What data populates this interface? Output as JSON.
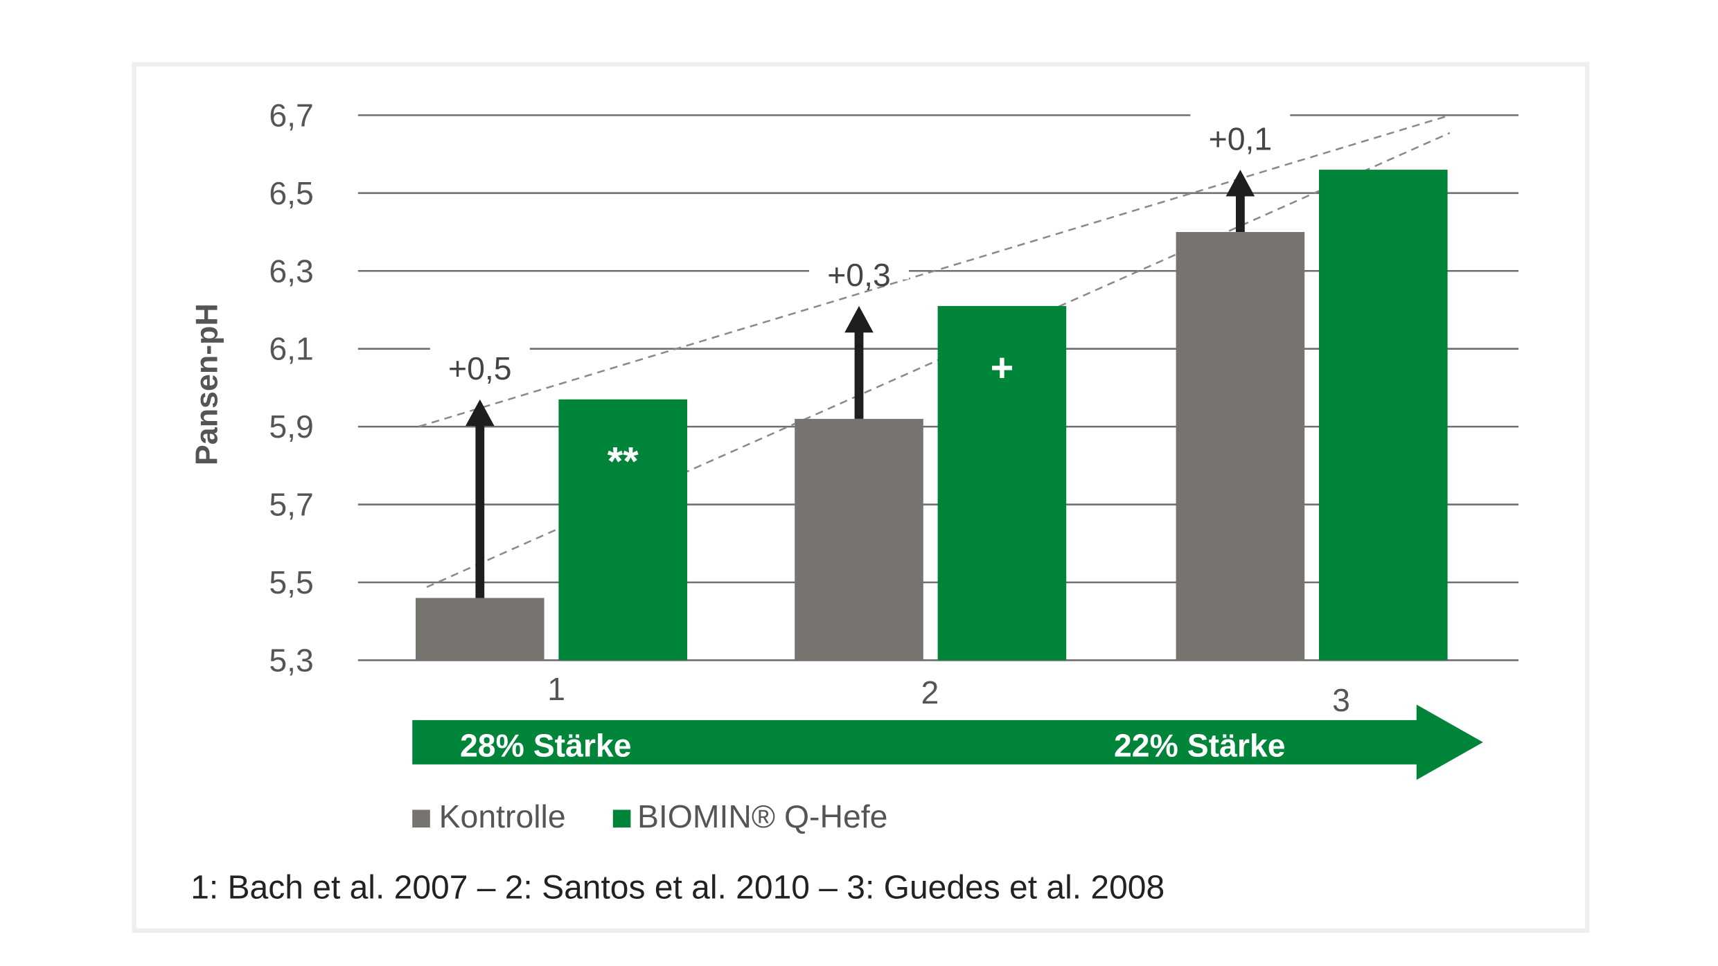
{
  "chart_data": {
    "type": "bar",
    "title": "",
    "ylabel": "Pansen-pH",
    "xlabel": "",
    "ylim": [
      5.3,
      6.7
    ],
    "yticks": [
      "5,3",
      "5,5",
      "5,7",
      "5,9",
      "6,1",
      "6,3",
      "6,5",
      "6,7"
    ],
    "ytick_values": [
      5.3,
      5.5,
      5.7,
      5.9,
      6.1,
      6.3,
      6.5,
      6.7
    ],
    "categories": [
      "1",
      "2",
      "3"
    ],
    "series": [
      {
        "name": "Kontrolle",
        "color": "#77736f",
        "values": [
          5.46,
          5.92,
          6.4
        ]
      },
      {
        "name": "BIOMIN® Q-Hefe",
        "color": "#00843a",
        "values": [
          5.97,
          6.21,
          6.56
        ]
      }
    ],
    "differences": [
      "+0,5",
      "+0,3",
      "+0,1"
    ],
    "significance": [
      "**",
      "+",
      ""
    ],
    "grid": true,
    "legend_placement": "bottom-left",
    "legend": [
      "Kontrolle",
      "BIOMIN® Q-Hefe"
    ],
    "starch_arrow": {
      "left": "28% Stärke",
      "right": "22% Stärke"
    },
    "footnote": "1: Bach et al. 2007 – 2: Santos et al. 2010 – 3: Guedes et al. 2008"
  }
}
